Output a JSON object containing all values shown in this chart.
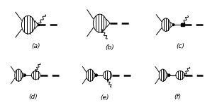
{
  "background_color": "#ffffff",
  "label_fontsize": 6.5,
  "labels": [
    "(a)",
    "(b)",
    "(c)",
    "(d)",
    "(e)",
    "(f)"
  ],
  "fig_width": 3.06,
  "fig_height": 1.49,
  "dpi": 100
}
